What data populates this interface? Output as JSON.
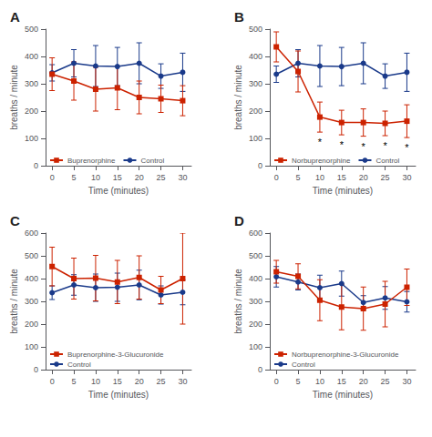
{
  "chart_data": [
    {
      "type": "line",
      "title": "A",
      "xlabel": "Time (minutes)",
      "ylabel": "breaths / minute",
      "x": [
        0,
        5,
        10,
        15,
        20,
        25,
        30
      ],
      "xlim": [
        -1.5,
        32
      ],
      "xticks": [
        0,
        5,
        10,
        15,
        20,
        25,
        30
      ],
      "ylim": [
        0,
        500
      ],
      "yticks": [
        0,
        100,
        200,
        300,
        400,
        500
      ],
      "grid": false,
      "legend": "lower left",
      "series": [
        {
          "name": "Control",
          "color": "#1a3a8a",
          "marker": "circle",
          "values": [
            340,
            375,
            365,
            363,
            375,
            328,
            342
          ],
          "errors": [
            30,
            50,
            75,
            70,
            75,
            45,
            70
          ]
        },
        {
          "name": "Buprenorphine",
          "color": "#cc2200",
          "marker": "square",
          "values": [
            335,
            310,
            280,
            285,
            250,
            245,
            238
          ],
          "errors": [
            60,
            70,
            80,
            80,
            60,
            50,
            55
          ]
        }
      ]
    },
    {
      "type": "line",
      "title": "B",
      "xlabel": "Time (minutes)",
      "ylabel": "breaths / minute",
      "x": [
        0,
        5,
        10,
        15,
        20,
        25,
        30
      ],
      "xlim": [
        -1.5,
        32
      ],
      "xticks": [
        0,
        5,
        10,
        15,
        20,
        25,
        30
      ],
      "ylim": [
        0,
        500
      ],
      "yticks": [
        0,
        100,
        200,
        300,
        400,
        500
      ],
      "grid": false,
      "legend": "lower left",
      "series": [
        {
          "name": "Control",
          "color": "#1a3a8a",
          "marker": "circle",
          "values": [
            335,
            375,
            365,
            363,
            375,
            328,
            342
          ],
          "errors": [
            30,
            50,
            75,
            70,
            75,
            45,
            70
          ]
        },
        {
          "name": "Norbuprenorphine",
          "color": "#cc2200",
          "marker": "square",
          "values": [
            435,
            345,
            178,
            158,
            158,
            155,
            163
          ],
          "errors": [
            55,
            75,
            55,
            45,
            50,
            45,
            60
          ]
        }
      ],
      "annotations": [
        {
          "text": "*",
          "x": 10,
          "y": 105
        },
        {
          "text": "*",
          "x": 15,
          "y": 95
        },
        {
          "text": "*",
          "x": 20,
          "y": 90
        },
        {
          "text": "*",
          "x": 25,
          "y": 92
        },
        {
          "text": "*",
          "x": 30,
          "y": 85
        }
      ]
    },
    {
      "type": "line",
      "title": "C",
      "xlabel": "Time (minutes)",
      "ylabel": "breaths / minute",
      "x": [
        0,
        5,
        10,
        15,
        20,
        25,
        30
      ],
      "xlim": [
        -1.5,
        32
      ],
      "xticks": [
        0,
        5,
        10,
        15,
        20,
        25,
        30
      ],
      "ylim": [
        0,
        600
      ],
      "yticks": [
        0,
        100,
        200,
        300,
        400,
        500,
        600
      ],
      "grid": false,
      "legend": "lower left",
      "series": [
        {
          "name": "Control",
          "color": "#1a3a8a",
          "marker": "circle",
          "values": [
            338,
            372,
            360,
            362,
            372,
            328,
            340
          ],
          "errors": [
            30,
            45,
            60,
            62,
            65,
            40,
            55
          ]
        },
        {
          "name": "Buprenorphine-3-Glucuronide",
          "color": "#cc2200",
          "marker": "square",
          "values": [
            453,
            400,
            402,
            385,
            405,
            350,
            400
          ],
          "errors": [
            85,
            90,
            100,
            95,
            95,
            60,
            200
          ]
        }
      ]
    },
    {
      "type": "line",
      "title": "D",
      "xlabel": "Time (minutes)",
      "ylabel": "breaths / minute",
      "x": [
        0,
        5,
        10,
        15,
        20,
        25,
        30
      ],
      "xlim": [
        -1.5,
        32
      ],
      "xticks": [
        0,
        5,
        10,
        15,
        20,
        25,
        30
      ],
      "ylim": [
        0,
        600
      ],
      "yticks": [
        0,
        100,
        200,
        300,
        400,
        500,
        600
      ],
      "grid": false,
      "legend": "lower left",
      "series": [
        {
          "name": "Control",
          "color": "#1a3a8a",
          "marker": "circle",
          "values": [
            408,
            385,
            360,
            378,
            295,
            315,
            298
          ],
          "errors": [
            45,
            35,
            55,
            55,
            30,
            50,
            45
          ]
        },
        {
          "name": "Norbuprenorphine-3-Glucuronide",
          "color": "#cc2200",
          "marker": "square",
          "values": [
            430,
            410,
            305,
            275,
            268,
            288,
            362
          ],
          "errors": [
            50,
            55,
            90,
            100,
            95,
            100,
            80
          ]
        }
      ]
    }
  ]
}
